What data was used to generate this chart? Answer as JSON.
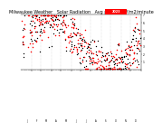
{
  "title": "Milwaukee Weather   Solar Radiation   Avg per Day W/m2/minute",
  "title_fontsize": 3.5,
  "background_color": "#ffffff",
  "plot_bg_color": "#ffffff",
  "grid_color": "#bbbbbb",
  "ylim": [
    0,
    7
  ],
  "ytick_values": [
    1,
    2,
    3,
    4,
    5,
    6,
    7
  ],
  "num_days": 365,
  "legend_label_red": "2023",
  "legend_label_black": ".",
  "dot_size_red": 1.2,
  "dot_size_black": 1.0,
  "num_years": 2,
  "month_days": [
    0,
    31,
    59,
    90,
    120,
    151,
    181,
    212,
    243,
    273,
    304,
    334,
    365
  ]
}
